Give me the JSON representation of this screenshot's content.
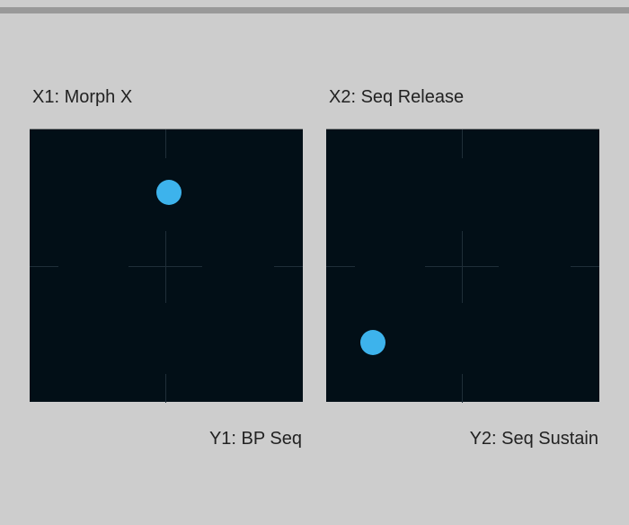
{
  "accent_color": "#3db3ec",
  "pads": [
    {
      "x_label": "X1: Morph X",
      "y_label": "Y1: BP Seq",
      "x_value": 0.51,
      "y_value": 0.77
    },
    {
      "x_label": "X2: Seq Release",
      "y_label": "Y2: Seq Sustain",
      "x_value": 0.17,
      "y_value": 0.22
    }
  ]
}
